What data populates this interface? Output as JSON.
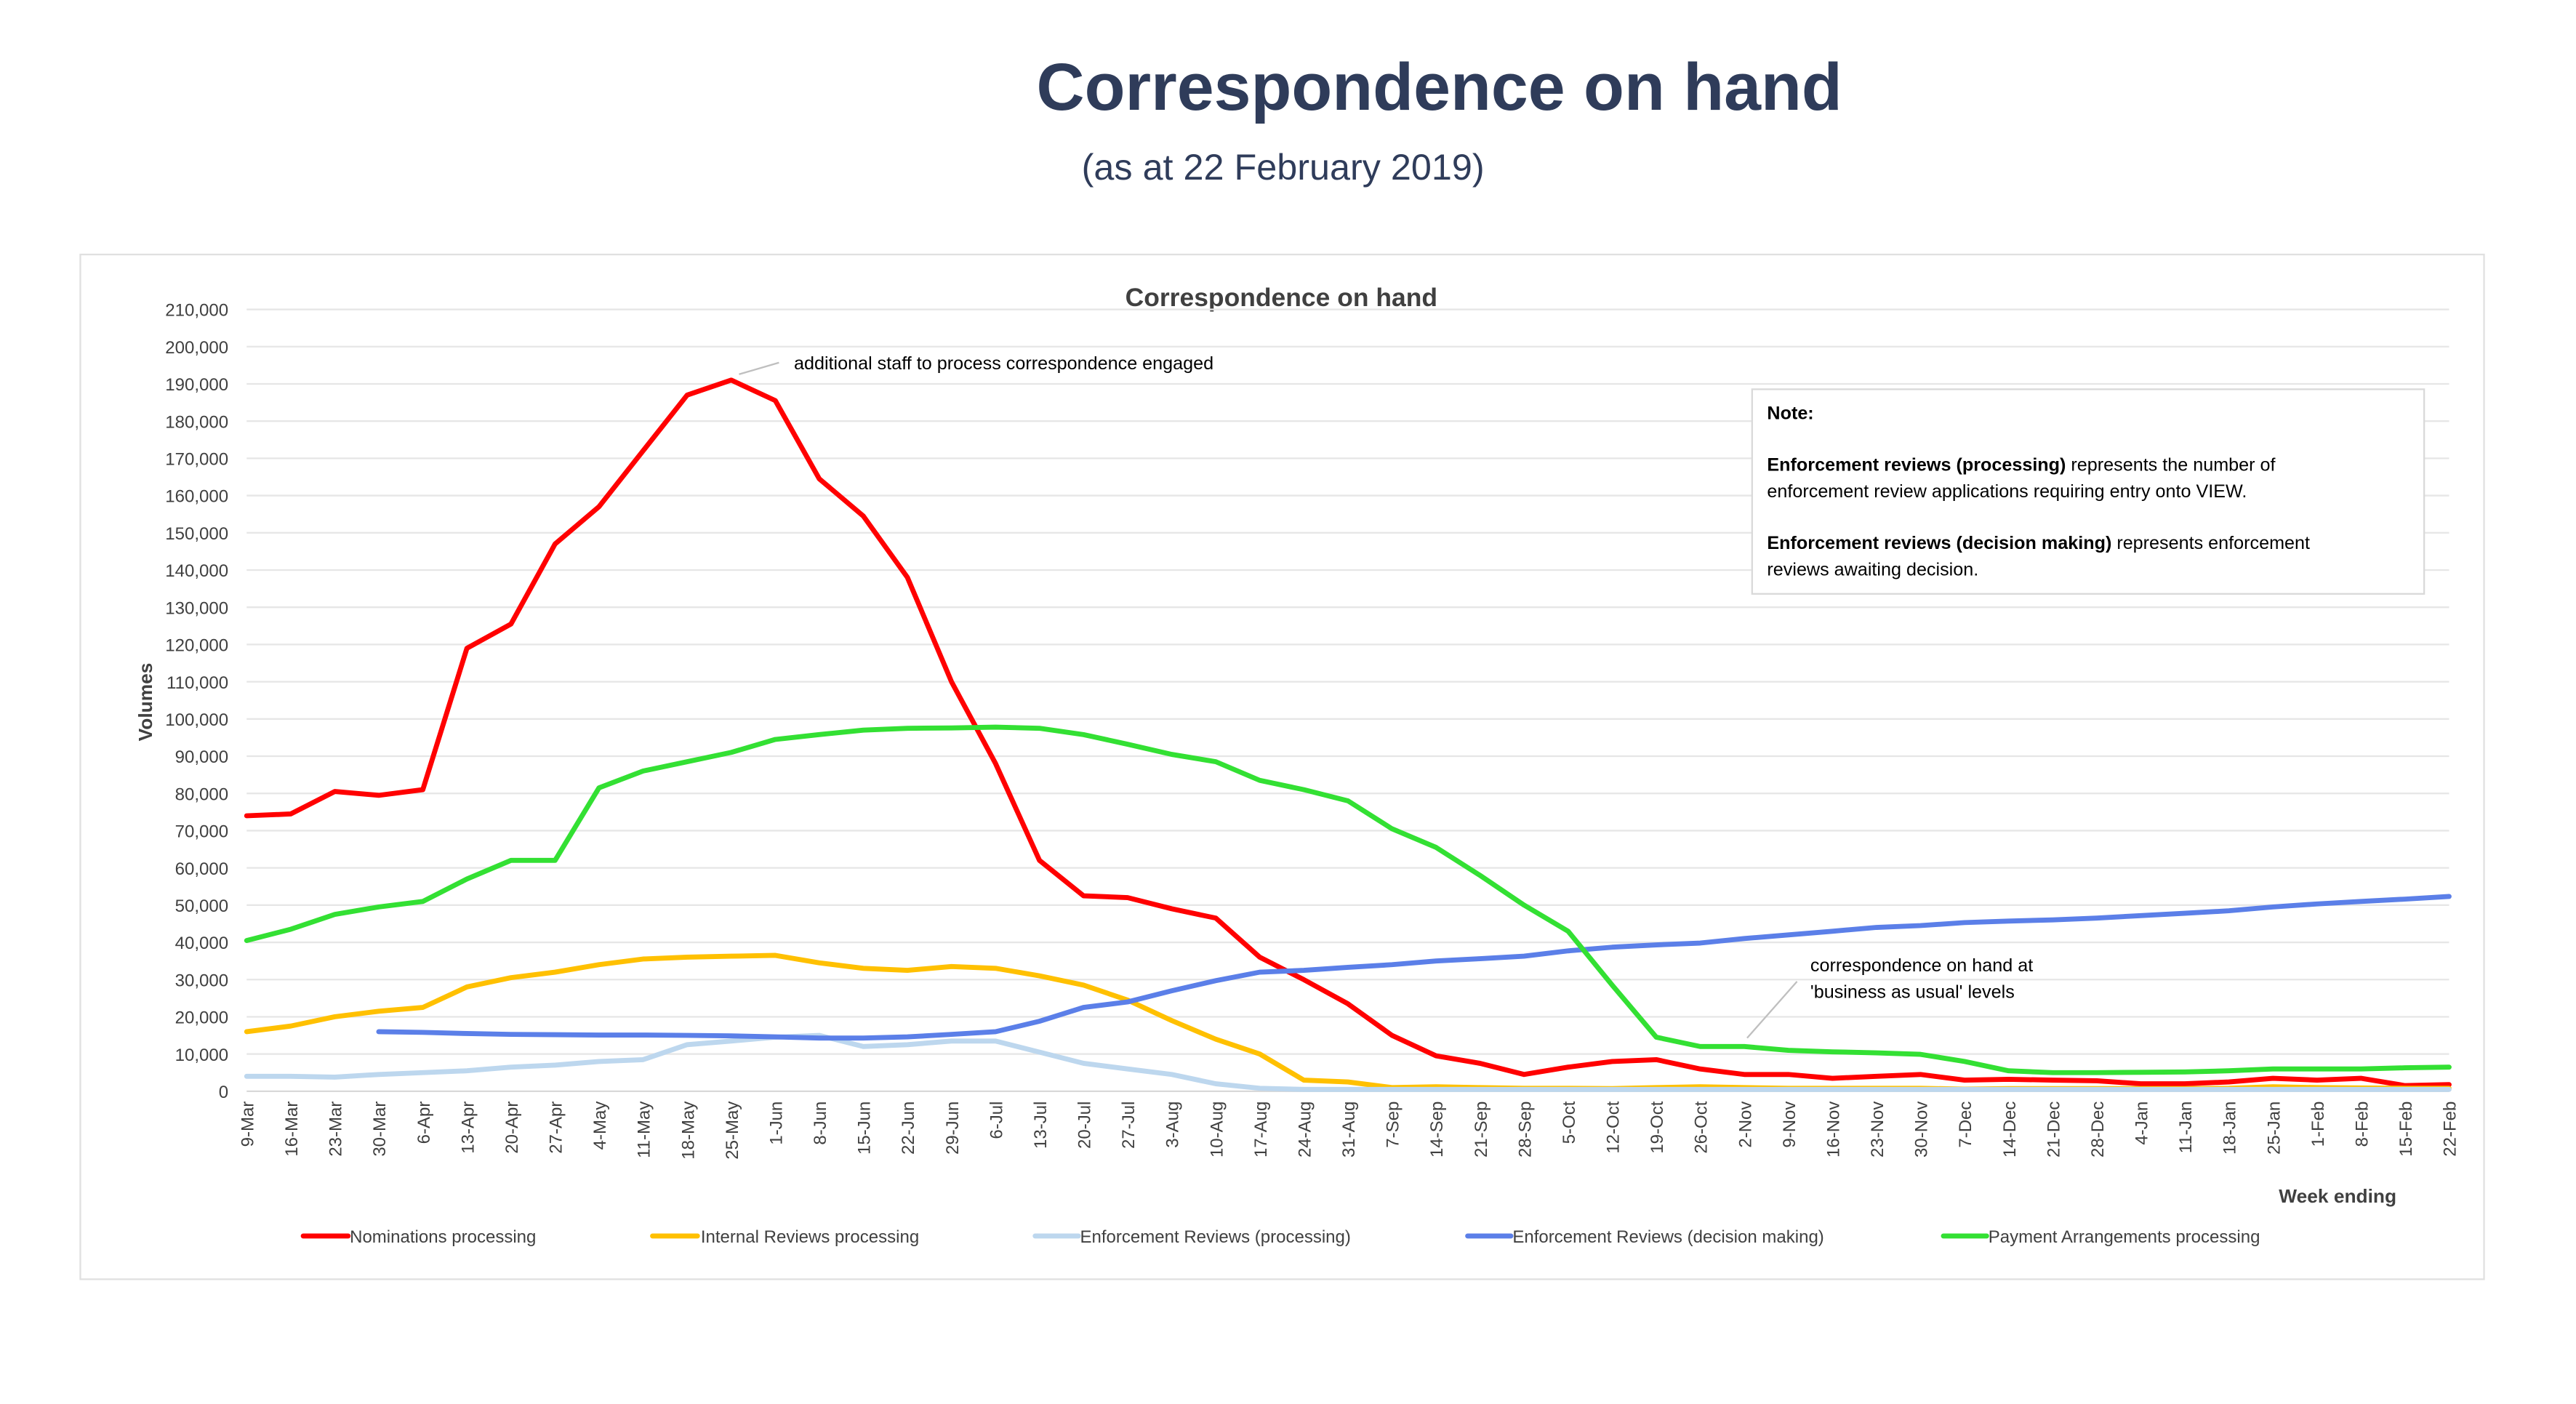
{
  "page": {
    "title": "Correspondence on hand",
    "subtitle": "(as at 22 February 2019)"
  },
  "chart_data": {
    "type": "line",
    "title": "Correspondence on hand",
    "xlabel": "Week ending",
    "ylabel": "Volumes",
    "ylim": [
      0,
      210000
    ],
    "ytick_step": 10000,
    "grid": true,
    "legend": "bottom",
    "categories": [
      "9-Mar",
      "16-Mar",
      "23-Mar",
      "30-Mar",
      "6-Apr",
      "13-Apr",
      "20-Apr",
      "27-Apr",
      "4-May",
      "11-May",
      "18-May",
      "25-May",
      "1-Jun",
      "8-Jun",
      "15-Jun",
      "22-Jun",
      "29-Jun",
      "6-Jul",
      "13-Jul",
      "20-Jul",
      "27-Jul",
      "3-Aug",
      "10-Aug",
      "17-Aug",
      "24-Aug",
      "31-Aug",
      "7-Sep",
      "14-Sep",
      "21-Sep",
      "28-Sep",
      "5-Oct",
      "12-Oct",
      "19-Oct",
      "26-Oct",
      "2-Nov",
      "9-Nov",
      "16-Nov",
      "23-Nov",
      "30-Nov",
      "7-Dec",
      "14-Dec",
      "21-Dec",
      "28-Dec",
      "4-Jan",
      "11-Jan",
      "18-Jan",
      "25-Jan",
      "1-Feb",
      "8-Feb",
      "15-Feb",
      "22-Feb"
    ],
    "series": [
      {
        "name": "Nominations processing",
        "color": "#ff0000",
        "values": [
          74000,
          74500,
          80500,
          79500,
          81000,
          119000,
          125500,
          147000,
          157000,
          172000,
          187000,
          191000,
          185500,
          164500,
          154500,
          138000,
          110000,
          88000,
          62000,
          52500,
          52000,
          49000,
          46500,
          36000,
          30000,
          23500,
          15000,
          9500,
          7500,
          4500,
          6500,
          8000,
          8500,
          6000,
          4500,
          4500,
          3500,
          4000,
          4500,
          3000,
          3200,
          3000,
          2800,
          2000,
          2000,
          2500,
          3500,
          3000,
          3500,
          1500,
          1800
        ]
      },
      {
        "name": "Internal Reviews processing",
        "color": "#ffc000",
        "values": [
          16000,
          17500,
          20000,
          21500,
          22500,
          28000,
          30500,
          32000,
          34000,
          35500,
          36000,
          36300,
          36500,
          34500,
          33000,
          32500,
          33500,
          33000,
          31000,
          28500,
          24500,
          19000,
          14000,
          10000,
          3000,
          2500,
          1000,
          1200,
          1000,
          800,
          800,
          700,
          1000,
          1200,
          1000,
          800,
          800,
          800,
          800,
          600,
          700,
          700,
          700,
          700,
          700,
          800,
          1200,
          1000,
          900,
          800,
          800
        ]
      },
      {
        "name": "Enforcement Reviews (processing)",
        "color": "#bdd7ee",
        "values": [
          4000,
          4000,
          3800,
          4500,
          5000,
          5500,
          6500,
          7000,
          8000,
          8500,
          12500,
          13500,
          14500,
          15000,
          12000,
          12500,
          13500,
          13500,
          10500,
          7500,
          6000,
          4500,
          2000,
          800,
          500,
          500,
          500,
          500,
          500,
          500,
          500,
          500,
          500,
          500,
          500,
          500,
          500,
          500,
          500,
          500,
          500,
          500,
          500,
          500,
          500,
          500,
          500,
          500,
          500,
          500,
          500
        ]
      },
      {
        "name": "Enforcement Reviews (decision making)",
        "color": "#5b7fe8",
        "values": [
          null,
          null,
          null,
          16000,
          15800,
          15500,
          15300,
          15200,
          15100,
          15100,
          15000,
          14900,
          14600,
          14300,
          14300,
          14600,
          15300,
          16000,
          18800,
          22500,
          24000,
          27000,
          29700,
          32000,
          32500,
          33300,
          34000,
          35000,
          35600,
          36300,
          37700,
          38700,
          39300,
          39800,
          41000,
          42000,
          43000,
          44000,
          44500,
          45300,
          45700,
          46000,
          46500,
          47200,
          47800,
          48500,
          49500,
          50300,
          51000,
          51600,
          52300
        ]
      },
      {
        "name": "Payment Arrangements processing",
        "color": "#33e033",
        "values": [
          40500,
          43500,
          47500,
          49500,
          51000,
          57000,
          62000,
          62000,
          81500,
          86000,
          88500,
          91000,
          94500,
          95800,
          97000,
          97500,
          97600,
          97800,
          97500,
          95800,
          93200,
          90500,
          88500,
          83500,
          81000,
          78000,
          70500,
          65500,
          58000,
          50000,
          43000,
          28500,
          14500,
          12000,
          12000,
          11000,
          10600,
          10300,
          9900,
          8000,
          5500,
          5000,
          5000,
          5100,
          5200,
          5500,
          6000,
          6000,
          6000,
          6300,
          6500
        ]
      }
    ],
    "annotations": [
      {
        "text": "additional staff to process correspondence engaged"
      },
      {
        "lines": [
          "correspondence on hand at",
          "'business as usual' levels"
        ]
      }
    ],
    "note": {
      "heading": "Note:",
      "items": [
        {
          "bold": "Enforcement reviews (processing)",
          "rest": " represents the number of",
          "line2": "enforcement review applications requiring entry onto VIEW."
        },
        {
          "bold": "Enforcement reviews (decision making)",
          "rest": " represents enforcement",
          "line2": "reviews awaiting decision."
        }
      ]
    }
  }
}
